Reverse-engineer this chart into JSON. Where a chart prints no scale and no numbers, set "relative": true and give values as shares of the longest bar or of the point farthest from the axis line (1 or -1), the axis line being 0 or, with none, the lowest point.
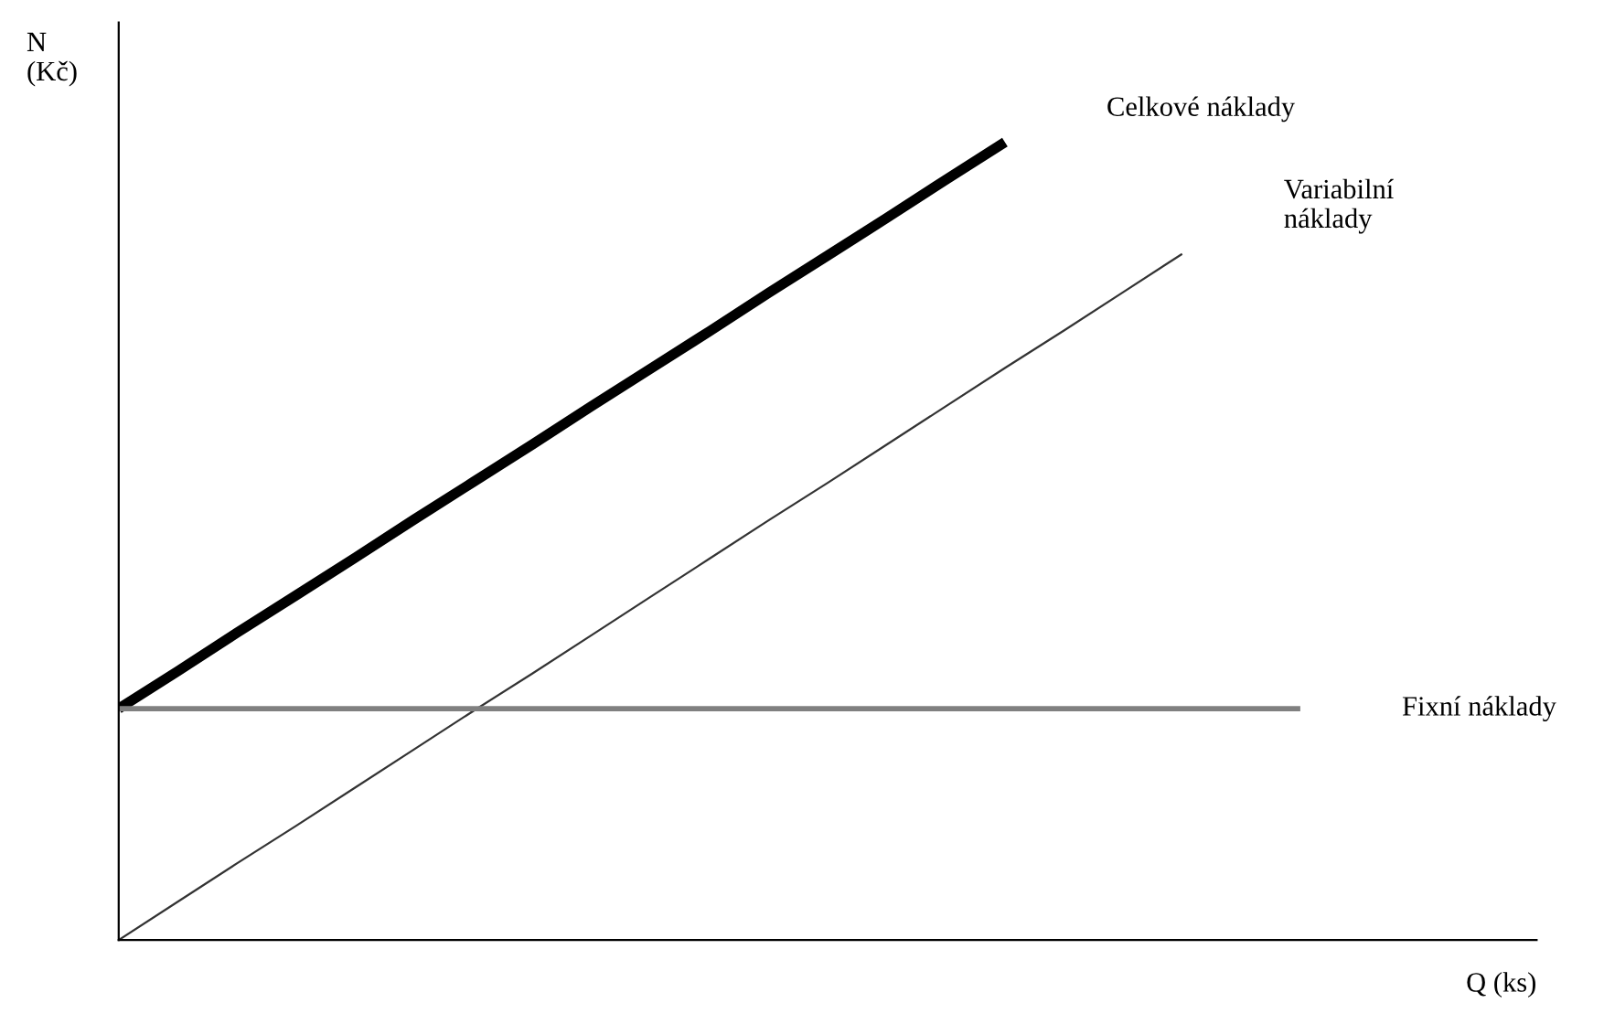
{
  "chart_data": {
    "type": "line",
    "relative": true,
    "xlabel": "Q (ks)",
    "ylabel": "N\n(Kč)",
    "tick_labels": false,
    "marker": "none",
    "line_style": "solid",
    "categories": [
      null,
      null,
      null,
      null,
      null,
      null,
      null,
      null,
      null,
      null,
      null,
      null,
      null,
      null,
      null,
      null,
      null,
      null,
      null,
      null,
      null,
      null,
      null,
      null,
      null
    ],
    "series": [
      {
        "name": "Celkové náklady",
        "color": "#000000",
        "values": [
          0.29,
          0.337,
          0.385,
          0.432,
          0.479,
          0.527,
          0.574,
          0.621,
          0.669,
          0.716,
          0.763,
          0.811,
          0.858,
          0.905,
          0.953,
          1.0,
          null,
          null,
          null,
          null,
          null,
          null,
          null,
          null,
          null
        ]
      },
      {
        "name": "Variabilní\nnáklady",
        "color": "#333333",
        "values": [
          0,
          0.048,
          0.096,
          0.143,
          0.191,
          0.239,
          0.287,
          0.334,
          0.382,
          0.43,
          0.478,
          0.526,
          0.573,
          0.621,
          0.669,
          0.717,
          0.764,
          0.812,
          0.86,
          null,
          null,
          null,
          null,
          null,
          null
        ]
      },
      {
        "name": "Fixní náklady",
        "color": "#808080",
        "values": [
          0.29,
          0.29,
          0.29,
          0.29,
          0.29,
          0.29,
          0.29,
          0.29,
          0.29,
          0.29,
          0.29,
          0.29,
          0.29,
          0.29,
          0.29,
          0.29,
          0.29,
          0.29,
          0.29,
          0.29,
          0.29,
          null,
          null,
          null,
          null
        ]
      }
    ]
  }
}
